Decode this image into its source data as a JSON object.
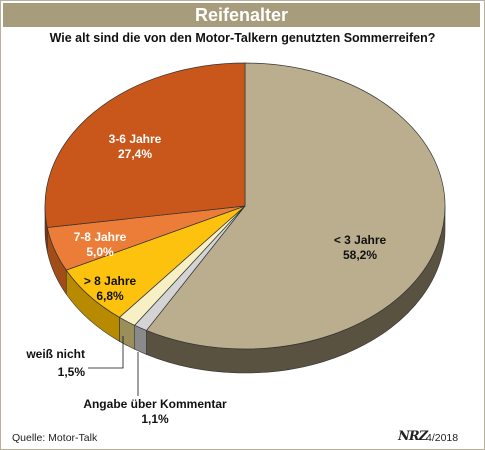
{
  "header": {
    "title": "Reifenalter",
    "question": "Wie alt sind die von den Motor-Talkern genutzten Sommerreifen?"
  },
  "footer": {
    "source": "Quelle: Motor-Talk",
    "logo": "NRZ",
    "date": "4/2018"
  },
  "chart_data": {
    "type": "pie",
    "title": "Wie alt sind die von den Motor-Talkern genutzten Sommerreifen?",
    "slices": [
      {
        "label": "< 3 Jahre",
        "value": 58.2,
        "value_label": "58,2%",
        "color": "#bbae8e",
        "side_color": "#5a5240"
      },
      {
        "label": "Angabe über Kommentar",
        "value": 1.1,
        "value_label": "1,1%",
        "color": "#d4d4d4",
        "side_color": "#8a8a8a"
      },
      {
        "label": "weiß nicht",
        "value": 1.5,
        "value_label": "1,5%",
        "color": "#f6f0c4",
        "side_color": "#9a8f5a"
      },
      {
        "label": "> 8 Jahre",
        "value": 6.8,
        "value_label": "6,8%",
        "color": "#fcc20e",
        "side_color": "#b88a00"
      },
      {
        "label": "7-8 Jahre",
        "value": 5.0,
        "value_label": "5,0%",
        "color": "#ec7d38",
        "side_color": "#a24c17"
      },
      {
        "label": "3-6 Jahre",
        "value": 27.4,
        "value_label": "27,4%",
        "color": "#c9561a",
        "side_color": "#87340c"
      }
    ]
  }
}
